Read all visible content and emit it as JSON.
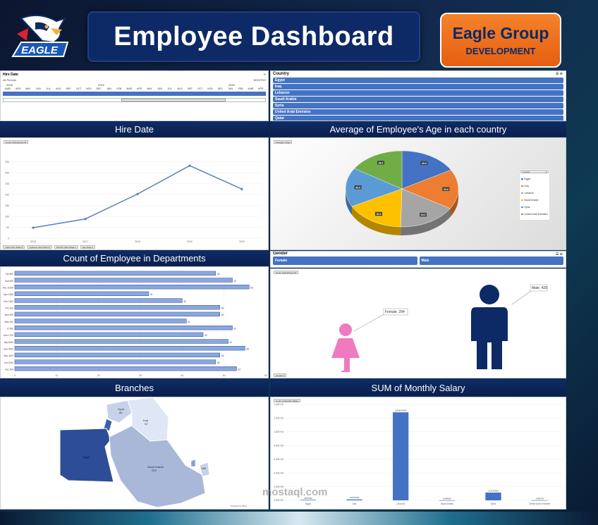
{
  "header": {
    "title": "Employee Dashboard",
    "logo_text": "EAGLE",
    "brand_name": "Eagle Group",
    "brand_sub": "DEVELOPMENT"
  },
  "hire_date_slicer": {
    "title": "Hire Date",
    "filter": "All Periods",
    "granularity": "MONTHS",
    "years": [
      "2018",
      "2019",
      "2020"
    ],
    "months": [
      "MAR",
      "APR",
      "MAY",
      "JUN",
      "JUL",
      "AUG",
      "SEP",
      "OCT",
      "NOV",
      "DEC",
      "JAN",
      "FEB",
      "MAR",
      "APR",
      "MAY",
      "JUN",
      "JUL",
      "AUG",
      "SEP",
      "OCT",
      "NOV",
      "DEC",
      "JAN",
      "FEB",
      "MAR",
      "APR"
    ]
  },
  "country_slicer": {
    "title": "Country",
    "items": [
      "Egypt",
      "Iraq",
      "Lebanon",
      "Saudi Arabia",
      "Syria",
      "United Arab Emirates",
      "Qatar"
    ]
  },
  "section_titles": {
    "hire_date": "Hire Date",
    "avg_age": "Average of Employee's Age in each country",
    "departments": "Count of Employee in Departments",
    "branches": "Branches",
    "salary": "SUM of Monthly Salary"
  },
  "gender_slicer": {
    "title": "Gender",
    "items": [
      "Female",
      "Male"
    ]
  },
  "field_buttons": {
    "line_value": "Count of Employee ID",
    "pie_value": "Average of Age",
    "pie_legend": "Country",
    "gender_value": "Count of Employee ID",
    "gender_axis": "Gender",
    "salary_value": "Count of Monthly Salary",
    "line_filters": [
      "Years (Hire Date)",
      "Quarters (Hire Date)",
      "Months (Hire Date)",
      "Hire Date"
    ]
  },
  "colors": {
    "accent": "#4472c4",
    "header_bg": "#0d2a66",
    "brand_bg": "#f5822a",
    "female": "#f07ac0",
    "male": "#0d2a66"
  },
  "gender_callouts": {
    "female": "Female, 294",
    "male": "Male, 429"
  },
  "map_labels": [
    {
      "name": "Syria",
      "value": "85"
    },
    {
      "name": "Iraq",
      "value": "92"
    },
    {
      "name": "Egypt",
      "value": ""
    },
    {
      "name": "Saudi Arabia",
      "value": "229"
    },
    {
      "name": "UAE",
      "value": ""
    }
  ],
  "map_credit": "Powered by Bing",
  "watermark": "mostaql.com",
  "chart_data": [
    {
      "type": "line",
      "title": "Hire Date",
      "x": [
        "2016",
        "2017",
        "2018",
        "2019",
        "2020"
      ],
      "values": [
        48,
        88,
        202,
        332,
        225
      ],
      "ylim": [
        0,
        400
      ],
      "yticks": [
        "0",
        "50",
        "100",
        "150",
        "200",
        "250",
        "300",
        "350"
      ]
    },
    {
      "type": "pie",
      "title": "Average of Employee's Age in each country",
      "categories": [
        "Egypt",
        "Iraq",
        "Lebanon",
        "Saudi Arabia",
        "Syria",
        "United Arab Emirates"
      ],
      "values": [
        40.3,
        40.6,
        40.3,
        40.9,
        40.0,
        38.5
      ],
      "labels": [
        "40.3",
        "40.6",
        "40.3",
        "40.9",
        "40.0",
        "38.5"
      ],
      "colors": [
        "#4472c4",
        "#ed7d31",
        "#a5a5a5",
        "#ffc000",
        "#5b9bd5",
        "#70ad47"
      ],
      "legend_title": "Country",
      "legend": "right"
    },
    {
      "type": "bar",
      "orientation": "horizontal",
      "title": "Count of Employee in Departments",
      "categories": [
        "Tax 600",
        "Sub 500",
        "Rec 11000",
        "Que 1500",
        "Pan 1300",
        "Pro 300",
        "Mon 900",
        "Man 200",
        "IT 900",
        "Acct 1700",
        "Ass 6300",
        "Bus 3400",
        "Bus 4100",
        "Car 2000",
        "Acc 300"
      ],
      "values": [
        48,
        52,
        56,
        32,
        40,
        49,
        49,
        41,
        52,
        45,
        51,
        55,
        49,
        48,
        53
      ],
      "labels": [
        "48",
        "52",
        "56",
        "32",
        "40",
        "49",
        "49",
        "41",
        "52",
        "45",
        "51",
        "55",
        "49",
        "48",
        "53"
      ],
      "xlim": [
        0,
        60
      ],
      "xticks": [
        "0",
        "10",
        "20",
        "30",
        "40",
        "50",
        "60"
      ]
    },
    {
      "type": "bar",
      "title": "SUM of Monthly Salary",
      "categories": [
        "Egypt",
        "Iraq",
        "Lebanon",
        "Saudi Arabia",
        "Syria",
        "United Arab Emirates"
      ],
      "values": [
        7567000,
        12919000,
        1286000000,
        1268000,
        113140000,
        1789700
      ],
      "labels": [
        "7567000",
        "12919000",
        "1286000000",
        "1268000",
        "113140000",
        "1789700"
      ],
      "ylim": [
        0,
        1400000000
      ],
      "yticks": [
        "0.00E+00",
        "2.00E+08",
        "4.00E+08",
        "6.00E+08",
        "8.00E+08",
        "1.00E+09",
        "1.20E+09",
        "1.40E+09"
      ]
    }
  ]
}
